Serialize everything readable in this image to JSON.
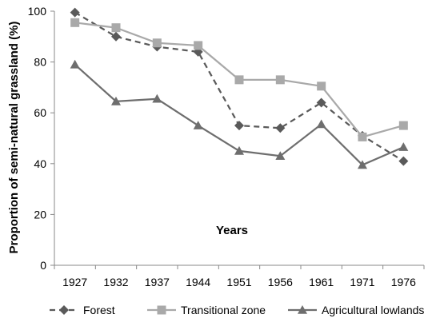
{
  "chart_data": {
    "type": "line",
    "title": "",
    "xlabel": "Years",
    "ylabel": "Proportion of semi-natural grassland (%)",
    "categories": [
      "1927",
      "1932",
      "1937",
      "1944",
      "1951",
      "1956",
      "1961",
      "1971",
      "1976"
    ],
    "ylim": [
      0,
      100
    ],
    "yticks": [
      "0",
      "20",
      "40",
      "60",
      "80",
      "100"
    ],
    "grid": false,
    "legend_position": "bottom",
    "series": [
      {
        "name": "Forest",
        "values": [
          99.5,
          90,
          86,
          84,
          55,
          54,
          64,
          51,
          41
        ],
        "color": "#5a5a5a",
        "line_style": "dashed",
        "marker": "diamond"
      },
      {
        "name": "Transitional zone",
        "values": [
          95.5,
          93.5,
          87.5,
          86.5,
          73,
          73,
          70.5,
          50.5,
          55
        ],
        "color": "#a9a9a9",
        "line_style": "solid",
        "marker": "square"
      },
      {
        "name": "Agricultural lowlands",
        "values": [
          79,
          64.5,
          65.5,
          55,
          45,
          43,
          55.5,
          39.5,
          46.5
        ],
        "color": "#6e6e6e",
        "line_style": "solid",
        "marker": "triangle"
      }
    ]
  }
}
